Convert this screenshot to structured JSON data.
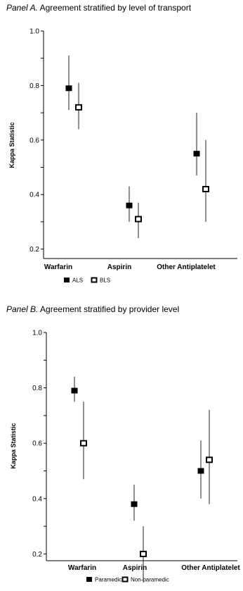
{
  "panels": [
    {
      "title_lead": "Panel A.",
      "title_rest": " Agreement stratified by level of transport",
      "chart_data": {
        "type": "scatter",
        "categories": [
          "Warfarin",
          "Aspirin",
          "Other Antiplatelet"
        ],
        "ylabel": "Kappa Statistic",
        "xlabel": "",
        "ylim": [
          0.0,
          1.0
        ],
        "yticks": [
          0.2,
          0.4,
          0.6,
          0.8,
          1.0
        ],
        "ytick_labels": [
          "0.2",
          "0.4",
          "0.6",
          "0.8",
          "1.0"
        ],
        "legend_position": "bottom-left",
        "series": [
          {
            "name": "ALS",
            "marker": "filled-square",
            "values": [
              0.79,
              0.36,
              0.55
            ],
            "ci_low": [
              0.71,
              0.3,
              0.47
            ],
            "ci_high": [
              0.91,
              0.43,
              0.7
            ]
          },
          {
            "name": "BLS",
            "marker": "open-square",
            "values": [
              0.72,
              0.31,
              0.42
            ],
            "ci_low": [
              0.64,
              0.24,
              0.3
            ],
            "ci_high": [
              0.81,
              0.37,
              0.6
            ]
          }
        ]
      }
    },
    {
      "title_lead": "Panel B.",
      "title_rest": " Agreement stratified by provider level",
      "chart_data": {
        "type": "scatter",
        "categories": [
          "Warfarin",
          "Aspirin",
          "Other Antiplatelet"
        ],
        "ylabel": "Kappa Statistic",
        "xlabel": "",
        "ylim": [
          0.0,
          1.0
        ],
        "yticks": [
          0.2,
          0.4,
          0.6,
          0.8,
          1.0
        ],
        "ytick_labels": [
          "0.2",
          "0.4",
          "0.6",
          "0.8",
          "1.0"
        ],
        "legend_position": "bottom-left",
        "series": [
          {
            "name": "Paramedic",
            "marker": "filled-square",
            "values": [
              0.79,
              0.38,
              0.5
            ],
            "ci_low": [
              0.75,
              0.32,
              0.4
            ],
            "ci_high": [
              0.84,
              0.45,
              0.61
            ]
          },
          {
            "name": "Non-paramedic",
            "marker": "open-square",
            "values": [
              0.6,
              0.2,
              0.54
            ],
            "ci_low": [
              0.47,
              0.1,
              0.38
            ],
            "ci_high": [
              0.75,
              0.3,
              0.72
            ]
          }
        ]
      }
    }
  ]
}
